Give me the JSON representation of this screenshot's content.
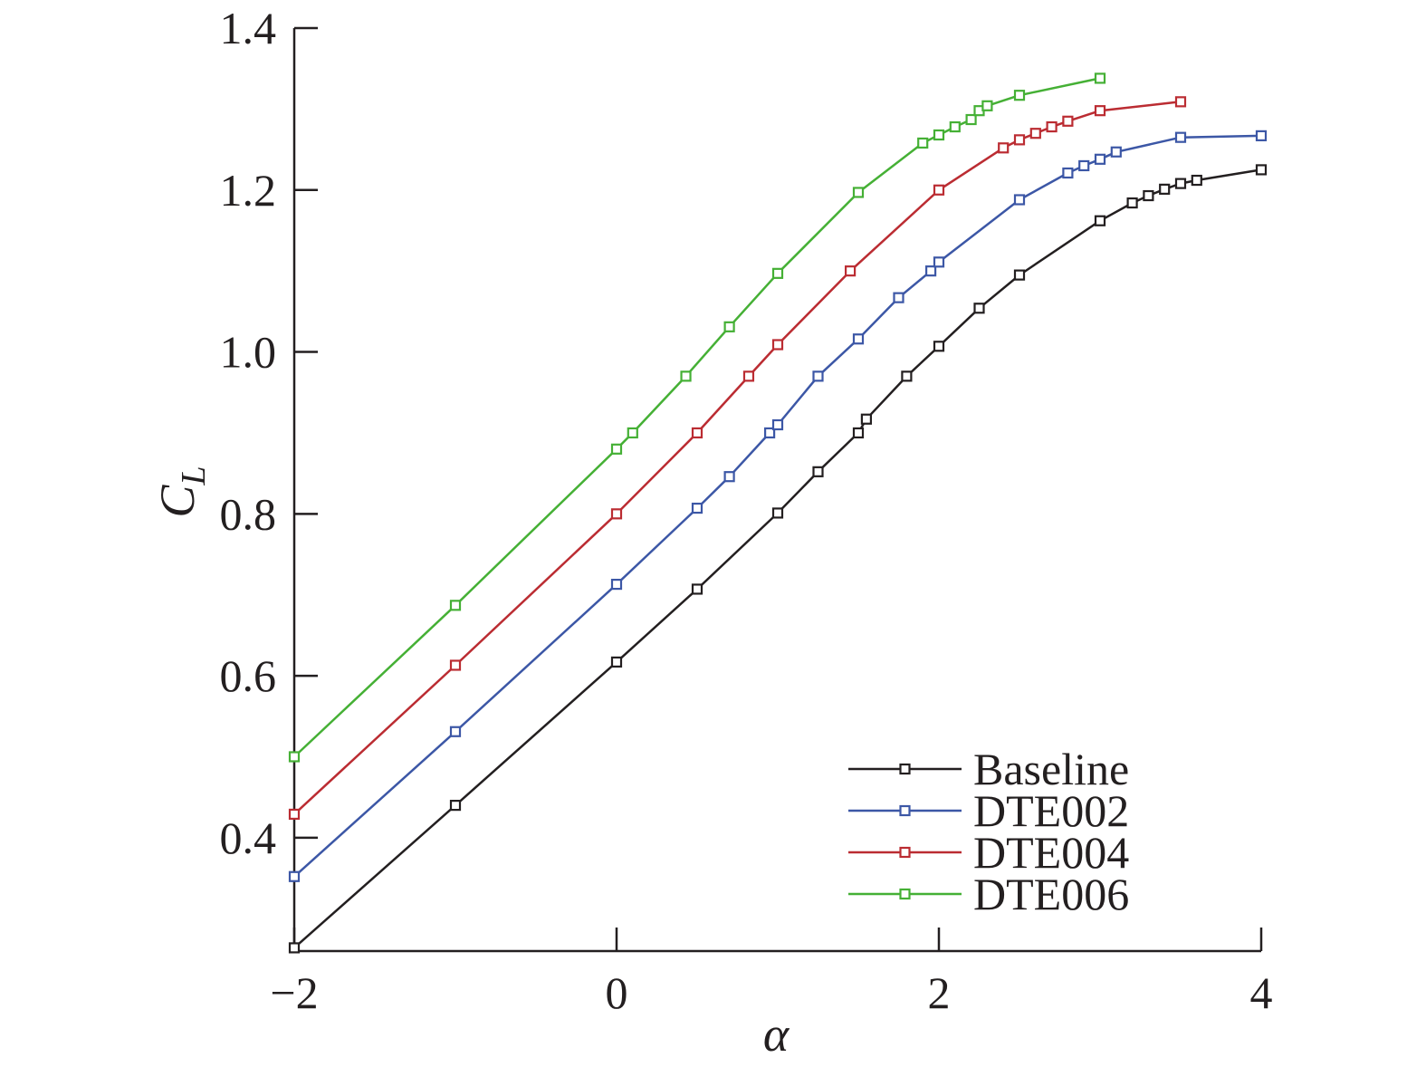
{
  "chart_data": {
    "type": "line",
    "title": "",
    "xlabel": "α",
    "ylabel": {
      "main": "C",
      "subscript": "L"
    },
    "xlim": [
      -2,
      4
    ],
    "ylim": [
      0.26,
      1.4
    ],
    "xticks": [
      -2,
      0,
      2,
      4
    ],
    "xtick_labels": [
      "−2",
      "0",
      "2",
      "4"
    ],
    "yticks": [
      0.4,
      0.6,
      0.8,
      1.0,
      1.2,
      1.4
    ],
    "ytick_labels": [
      "0.4",
      "0.6",
      "0.8",
      "1.0",
      "1.2",
      "1.4"
    ],
    "grid": false,
    "legend_position": "bottom-right",
    "marker": "open-square",
    "series": [
      {
        "name": "Baseline",
        "color": "#231f20",
        "x": [
          -2,
          -1,
          0,
          0.5,
          1,
          1.25,
          1.5,
          1.55,
          1.8,
          2,
          2.25,
          2.5,
          3,
          3.2,
          3.3,
          3.4,
          3.5,
          3.6,
          4
        ],
        "y": [
          0.264,
          0.44,
          0.617,
          0.707,
          0.801,
          0.852,
          0.9,
          0.917,
          0.97,
          1.007,
          1.054,
          1.095,
          1.162,
          1.184,
          1.193,
          1.201,
          1.208,
          1.212,
          1.225
        ]
      },
      {
        "name": "DTE002",
        "color": "#3c57a6",
        "x": [
          -2,
          -1,
          0,
          0.5,
          0.7,
          0.95,
          1,
          1.25,
          1.5,
          1.75,
          1.95,
          2,
          2.5,
          2.8,
          2.9,
          3,
          3.1,
          3.5,
          4
        ],
        "y": [
          0.352,
          0.531,
          0.713,
          0.807,
          0.846,
          0.9,
          0.91,
          0.97,
          1.016,
          1.067,
          1.1,
          1.111,
          1.188,
          1.221,
          1.23,
          1.238,
          1.247,
          1.265,
          1.267
        ]
      },
      {
        "name": "DTE004",
        "color": "#bb2c32",
        "x": [
          -2,
          -1,
          0,
          0.5,
          0.82,
          1,
          1.45,
          2,
          2.4,
          2.5,
          2.6,
          2.7,
          2.8,
          3,
          3.5
        ],
        "y": [
          0.429,
          0.613,
          0.8,
          0.9,
          0.97,
          1.009,
          1.1,
          1.2,
          1.252,
          1.262,
          1.27,
          1.278,
          1.285,
          1.298,
          1.309
        ]
      },
      {
        "name": "DTE006",
        "color": "#45b035",
        "x": [
          -2,
          -1,
          0,
          0.1,
          0.43,
          0.7,
          1,
          1.5,
          1.9,
          2,
          2.1,
          2.2,
          2.25,
          2.3,
          2.5,
          3
        ],
        "y": [
          0.5,
          0.687,
          0.88,
          0.9,
          0.97,
          1.031,
          1.097,
          1.197,
          1.258,
          1.268,
          1.278,
          1.287,
          1.298,
          1.304,
          1.317,
          1.338
        ]
      }
    ]
  }
}
